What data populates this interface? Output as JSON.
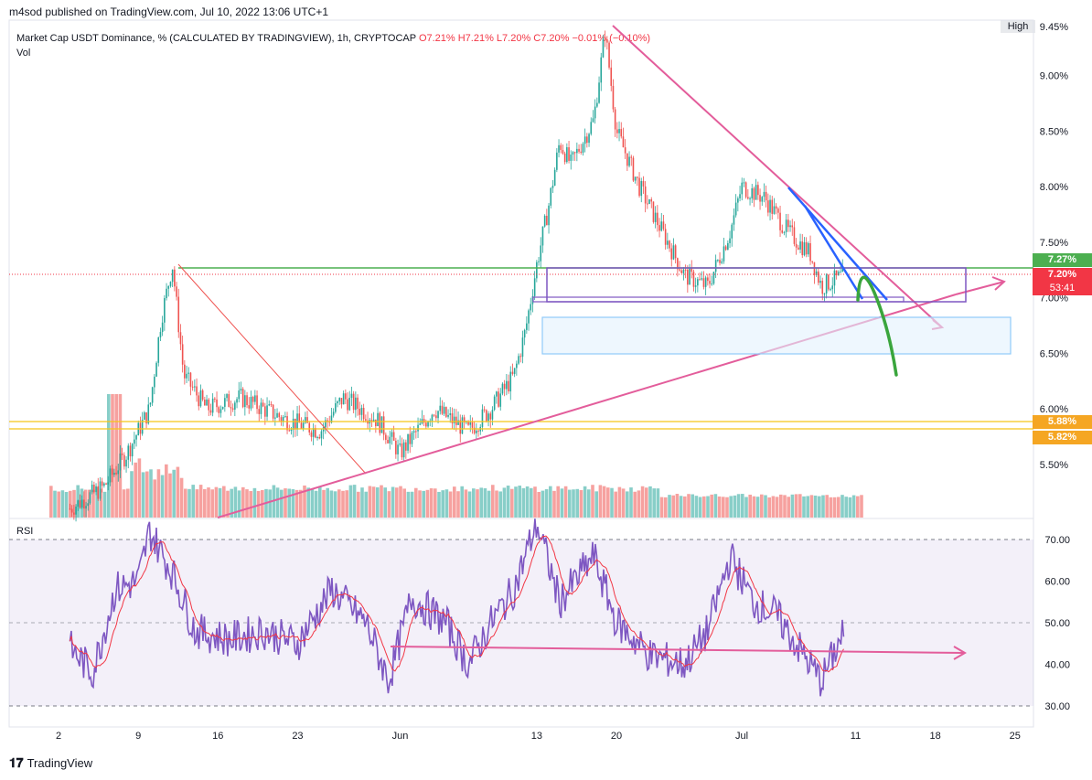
{
  "header": {
    "published": "m4sod published on TradingView.com, Jul 10, 2022 13:06 UTC+1"
  },
  "legend": {
    "title": "Market Cap USDT Dominance, % (CALCULATED BY TRADINGVIEW), 1h, CRYPTOCAP",
    "ohlc": "O7.21% H7.21% L7.20% C7.20% −0.01% (−0.10%)",
    "vol": "Vol"
  },
  "rsi_label": "RSI",
  "high_tag": "High",
  "price_tags": {
    "green": "7.27%",
    "current": "7.20%",
    "countdown": "53:41",
    "yellow1": "5.88%",
    "yellow2": "5.82%"
  },
  "colors": {
    "up": "#26a69a",
    "down": "#ef5350",
    "trend_pink": "#e35d9b",
    "support_green": "#4caf50",
    "box_purple": "#7e57c2",
    "blue_line": "#2962ff",
    "rsi_line": "#7e57c2",
    "rsi_ma": "#f23645",
    "yellow": "#f5c518",
    "box_blue": "#bbdefb"
  },
  "footer": {
    "brand": "TradingView"
  },
  "chart_data": [
    {
      "type": "candlestick",
      "title": "Market Cap USDT Dominance, % (CALCULATED BY TRADINGVIEW), 1h, CRYPTOCAP",
      "x_ticks": [
        "2",
        "9",
        "16",
        "23",
        "Jun",
        "13",
        "20",
        "Jul",
        "11",
        "18",
        "25"
      ],
      "y_ticks": [
        "9.45%",
        "9.00%",
        "8.50%",
        "8.00%",
        "7.50%",
        "7.00%",
        "6.50%",
        "6.00%",
        "5.50%"
      ],
      "ylim": [
        5.0,
        9.5
      ],
      "key_levels": [
        7.27,
        7.2,
        5.88,
        5.82
      ],
      "approx_path": [
        [
          "May 3",
          5.1
        ],
        [
          "May 6",
          5.3
        ],
        [
          "May 8",
          5.6
        ],
        [
          "May 10",
          6.0
        ],
        [
          "May 11",
          6.8
        ],
        [
          "May 12",
          7.3
        ],
        [
          "May 13",
          6.3
        ],
        [
          "May 15",
          6.0
        ],
        [
          "May 18",
          6.1
        ],
        [
          "May 22",
          5.9
        ],
        [
          "May 25",
          5.8
        ],
        [
          "May 27",
          6.1
        ],
        [
          "May 30",
          5.9
        ],
        [
          "Jun 1",
          5.6
        ],
        [
          "Jun 4",
          6.0
        ],
        [
          "Jun 7",
          5.8
        ],
        [
          "Jun 9",
          6.0
        ],
        [
          "Jun 11",
          6.3
        ],
        [
          "Jun 12",
          6.7
        ],
        [
          "Jun 13",
          7.3
        ],
        [
          "Jun 14",
          7.8
        ],
        [
          "Jun 15",
          8.4
        ],
        [
          "Jun 16",
          8.2
        ],
        [
          "Jun 18",
          8.6
        ],
        [
          "Jun 19",
          9.4
        ],
        [
          "Jun 20",
          8.5
        ],
        [
          "Jun 22",
          8.0
        ],
        [
          "Jun 24",
          7.6
        ],
        [
          "Jun 26",
          7.2
        ],
        [
          "Jun 28",
          7.1
        ],
        [
          "Jun 30",
          7.6
        ],
        [
          "Jul 1",
          8.0
        ],
        [
          "Jul 3",
          7.9
        ],
        [
          "Jul 5",
          7.6
        ],
        [
          "Jul 7",
          7.4
        ],
        [
          "Jul 8",
          7.1
        ],
        [
          "Jul 10",
          7.2
        ]
      ]
    },
    {
      "type": "line",
      "title": "RSI",
      "y_ticks": [
        "70.00",
        "60.00",
        "50.00",
        "40.00",
        "30.00"
      ],
      "ylim": [
        27,
        75
      ],
      "bands": [
        30,
        50,
        70
      ],
      "approx_path": [
        [
          "May 3",
          44
        ],
        [
          "May 5",
          38
        ],
        [
          "May 7",
          58
        ],
        [
          "May 9",
          60
        ],
        [
          "May 10",
          72
        ],
        [
          "May 12",
          62
        ],
        [
          "May 14",
          48
        ],
        [
          "May 17",
          46
        ],
        [
          "May 20",
          48
        ],
        [
          "May 23",
          45
        ],
        [
          "May 26",
          58
        ],
        [
          "May 29",
          50
        ],
        [
          "May 31",
          36
        ],
        [
          "Jun 2",
          56
        ],
        [
          "Jun 5",
          50
        ],
        [
          "Jun 7",
          40
        ],
        [
          "Jun 9",
          50
        ],
        [
          "Jun 11",
          58
        ],
        [
          "Jun 13",
          74
        ],
        [
          "Jun 15",
          55
        ],
        [
          "Jun 18",
          66
        ],
        [
          "Jun 20",
          50
        ],
        [
          "Jun 23",
          42
        ],
        [
          "Jun 26",
          40
        ],
        [
          "Jun 28",
          48
        ],
        [
          "Jun 30",
          66
        ],
        [
          "Jul 2",
          55
        ],
        [
          "Jul 4",
          52
        ],
        [
          "Jul 6",
          44
        ],
        [
          "Jul 8",
          36
        ],
        [
          "Jul 10",
          48
        ]
      ]
    }
  ]
}
